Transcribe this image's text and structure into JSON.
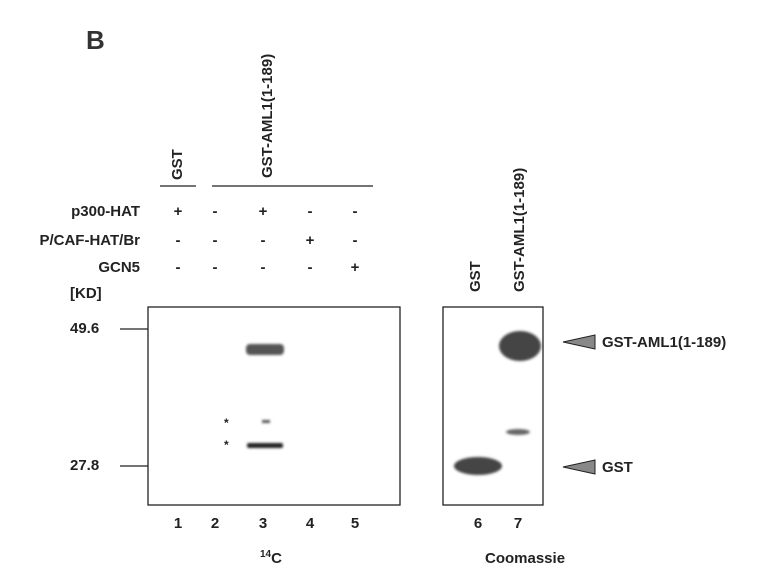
{
  "figure_label": "B",
  "left_panel": {
    "groups": [
      {
        "label": "GST"
      },
      {
        "label": "GST-AML1(1-189)"
      }
    ],
    "conditions": [
      {
        "label": "p300-HAT",
        "signs": [
          "+",
          "-",
          "+",
          "-",
          "-"
        ]
      },
      {
        "label": "P/CAF-HAT/Br",
        "signs": [
          "-",
          "-",
          "-",
          "+",
          "-"
        ]
      },
      {
        "label": "GCN5",
        "signs": [
          "-",
          "-",
          "-",
          "-",
          "+"
        ]
      }
    ],
    "unit_label": "[KD]",
    "markers": [
      "49.6",
      "27.8"
    ],
    "asterisks": [
      "*",
      "*"
    ],
    "lanes": [
      "1",
      "2",
      "3",
      "4",
      "5"
    ],
    "stain": {
      "mass": "14",
      "element": "C"
    }
  },
  "right_panel": {
    "lane_labels": [
      "GST",
      "GST-AML1(1-189)"
    ],
    "lanes": [
      "6",
      "7"
    ],
    "stain": "Coomassie",
    "arrow_labels": [
      "GST-AML1(1-189)",
      "GST"
    ]
  }
}
